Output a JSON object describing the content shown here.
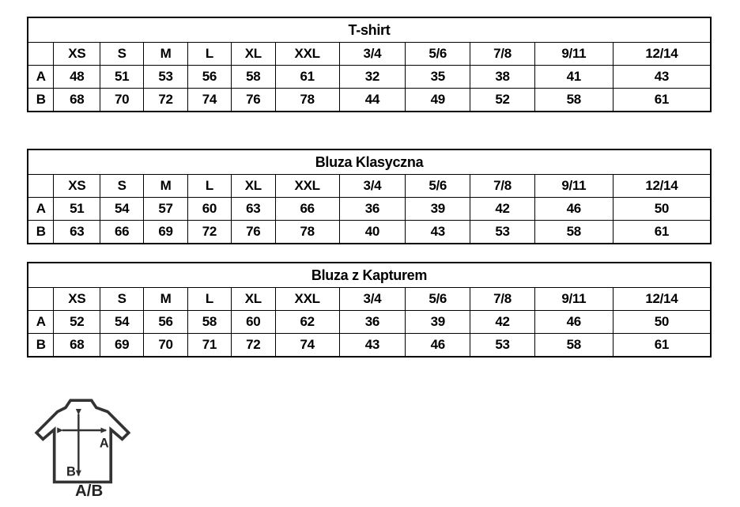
{
  "page": {
    "background": "#ffffff",
    "text_color": "#000000",
    "border_color": "#000000"
  },
  "columns": [
    "",
    "XS",
    "S",
    "M",
    "L",
    "XL",
    "XXL",
    "3/4",
    "5/6",
    "7/8",
    "9/11",
    "12/14"
  ],
  "tables": [
    {
      "title": "T-shirt",
      "rows": [
        {
          "label": "A",
          "values": [
            "48",
            "51",
            "53",
            "56",
            "58",
            "61",
            "32",
            "35",
            "38",
            "41",
            "43"
          ]
        },
        {
          "label": "B",
          "values": [
            "68",
            "70",
            "72",
            "74",
            "76",
            "78",
            "44",
            "49",
            "52",
            "58",
            "61"
          ]
        }
      ]
    },
    {
      "title": "Bluza Klasyczna",
      "rows": [
        {
          "label": "A",
          "values": [
            "51",
            "54",
            "57",
            "60",
            "63",
            "66",
            "36",
            "39",
            "42",
            "46",
            "50"
          ]
        },
        {
          "label": "B",
          "values": [
            "63",
            "66",
            "69",
            "72",
            "76",
            "78",
            "40",
            "43",
            "53",
            "58",
            "61"
          ]
        }
      ]
    },
    {
      "title": "Bluza z Kapturem",
      "rows": [
        {
          "label": "A",
          "values": [
            "52",
            "54",
            "56",
            "58",
            "60",
            "62",
            "36",
            "39",
            "42",
            "46",
            "50"
          ]
        },
        {
          "label": "B",
          "values": [
            "68",
            "69",
            "70",
            "71",
            "72",
            "74",
            "43",
            "46",
            "53",
            "58",
            "61"
          ]
        }
      ]
    }
  ],
  "diagram": {
    "width_arrow_label": "A",
    "length_arrow_label": "B",
    "caption": "A/B",
    "stroke_color": "#333333",
    "label_color": "#222222"
  }
}
